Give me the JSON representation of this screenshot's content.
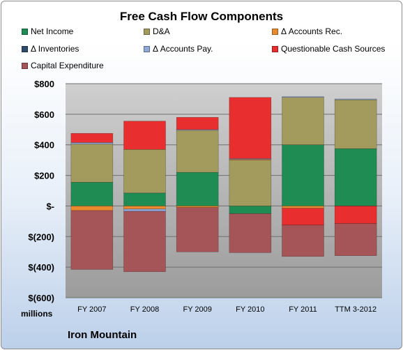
{
  "chart_data": {
    "type": "bar",
    "stacked": true,
    "title": "Free Cash Flow Components",
    "units_label": "millions",
    "footer": "Iron Mountain",
    "categories": [
      "FY 2007",
      "FY 2008",
      "FY 2009",
      "FY 2010",
      "FY 2011",
      "TTM 3-2012"
    ],
    "yticks": [
      "$800",
      "$600",
      "$400",
      "$200",
      "$-",
      "$(200)",
      "$(400)",
      "$(600)"
    ],
    "ylim": [
      -600,
      800
    ],
    "grid": true,
    "legend": "top",
    "series": [
      {
        "name": "Net Income",
        "color": "#1e8c53",
        "values": [
          155,
          85,
          220,
          -50,
          400,
          375
        ]
      },
      {
        "name": "D&A",
        "color": "#a39a5e",
        "values": [
          250,
          285,
          275,
          300,
          310,
          320
        ]
      },
      {
        "name": "Δ Accounts Rec.",
        "color": "#e98a2f",
        "values": [
          -30,
          -20,
          -10,
          5,
          -15,
          0
        ]
      },
      {
        "name": "Δ Inventories",
        "color": "#2f4c6a",
        "values": [
          0,
          0,
          0,
          0,
          0,
          0
        ]
      },
      {
        "name": "Δ Accounts Pay.",
        "color": "#8fa8d8",
        "values": [
          10,
          -15,
          5,
          5,
          5,
          5
        ]
      },
      {
        "name": "Questionable Cash Sources",
        "color": "#e82e2e",
        "values": [
          60,
          185,
          80,
          400,
          -110,
          -115
        ]
      },
      {
        "name": "Capital Expenditure",
        "color": "#a55457",
        "values": [
          -385,
          -395,
          -290,
          -255,
          -205,
          -210
        ]
      }
    ]
  }
}
